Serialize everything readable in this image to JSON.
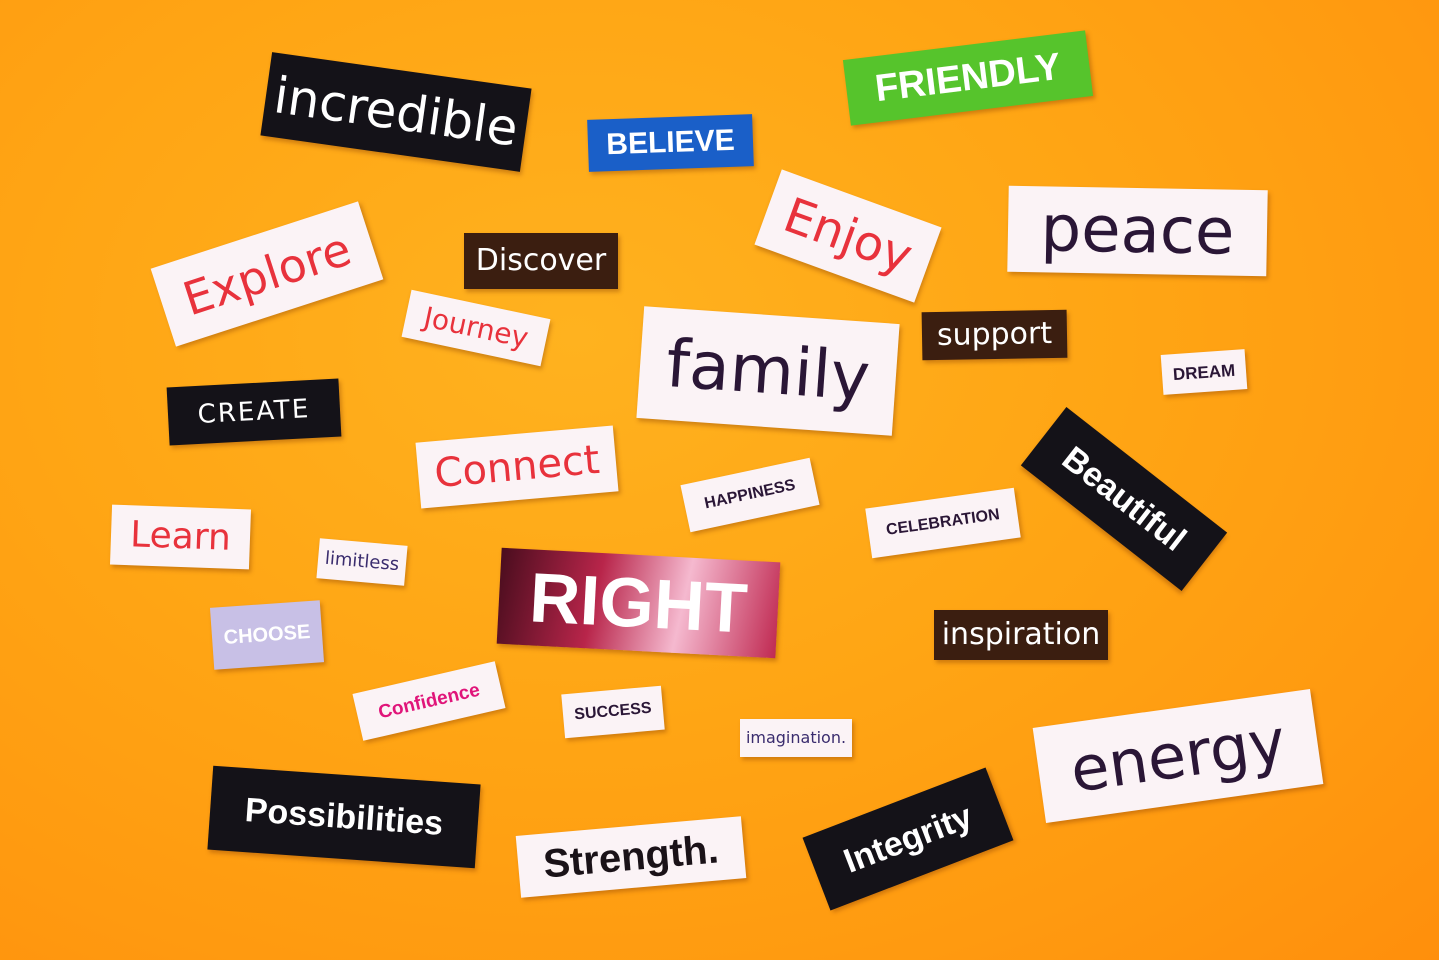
{
  "words": {
    "incredible": "incredible",
    "believe": "BELIEVE",
    "friendly": "FRIENDLY",
    "enjoy": "Enjoy",
    "peace": "peace",
    "explore": "Explore",
    "discover": "Discover",
    "journey": "Journey",
    "family": "family",
    "support": "support",
    "dream": "DREAM",
    "create": "CREATE",
    "connect": "Connect",
    "happiness": "HAPPINESS",
    "celebration": "CELEBRATION",
    "beautiful": "Beautiful",
    "learn": "Learn",
    "limitless": "limitless",
    "right": "RIGHT",
    "choose": "CHOOSE",
    "inspiration": "inspiration",
    "confidence": "Confidence",
    "success": "SUCCESS",
    "imagination": "imagination.",
    "energy": "energy",
    "possibilities": "Possibilities",
    "strength": "Strength.",
    "integrity": "Integrity"
  },
  "colors": {
    "background": "#ffa514",
    "red_text": "#e8323c",
    "pink_text": "#e0157a",
    "blue_label": "#1a5fc8",
    "green_label": "#56c42c",
    "dark_text": "#2a1636"
  }
}
